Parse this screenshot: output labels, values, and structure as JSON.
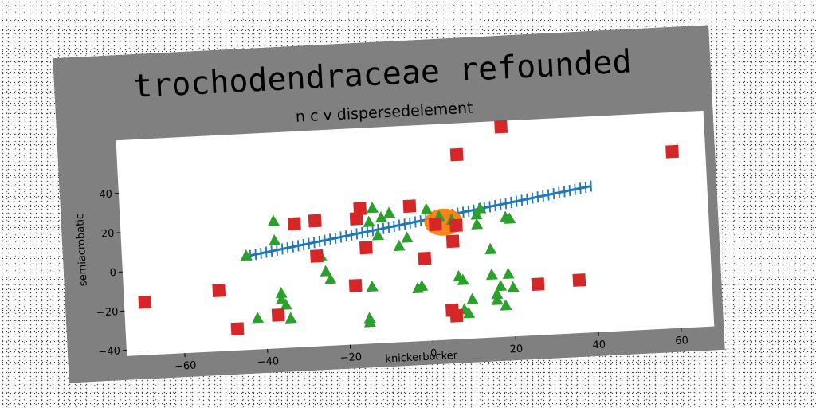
{
  "chart_data": {
    "type": "scatter",
    "title": "trochodendraceae refounded",
    "subtitle": "n c v dispersedelement",
    "xlabel": "knickerbocker",
    "ylabel": "semiacrobatic",
    "xlim": [
      -74,
      68
    ],
    "ylim": [
      -43,
      67
    ],
    "xticks": [
      -60,
      -40,
      -20,
      0,
      20,
      40,
      60
    ],
    "yticks": [
      -40,
      -20,
      0,
      20,
      40
    ],
    "grid": false,
    "legend": "none",
    "colors": {
      "frame_bg": "#808080",
      "plot_bg": "#ffffff",
      "line": "#1f77b4",
      "blob": "#ff7f0e",
      "triangle": "#2ca02c",
      "square": "#d62728"
    },
    "series": [
      {
        "marker": "x-line",
        "x": [
          -43,
          -38,
          -33,
          -28,
          -23,
          -18,
          -13,
          -8,
          -3,
          2,
          7,
          12,
          17,
          22,
          27,
          32,
          37,
          40
        ],
        "y": [
          5,
          6.6,
          8.2,
          9.8,
          11.4,
          13,
          14.6,
          16.2,
          17.8,
          19.4,
          21,
          22.6,
          24.2,
          25.8,
          27.4,
          29,
          30.6,
          31.5
        ]
      },
      {
        "marker": "blob",
        "x": [
          4
        ],
        "y": [
          17
        ]
      },
      {
        "marker": "triangle",
        "x": [
          -44,
          -37,
          -37,
          -36,
          -36,
          -35,
          -34,
          -42,
          -26,
          -25,
          -24,
          -15,
          -15,
          -14,
          -13,
          -14,
          -12,
          -11,
          -9,
          -7,
          -5,
          -3,
          -2,
          0,
          3,
          6,
          7,
          8,
          10,
          12,
          12,
          13,
          15,
          15,
          16,
          16,
          17,
          18,
          19,
          20,
          19,
          20,
          8,
          9
        ],
        "y": [
          5,
          22,
          12,
          -15,
          -18,
          -21,
          -28,
          -27,
          3,
          -5,
          -9,
          -30,
          -32,
          -14,
          26,
          19,
          12,
          21,
          23,
          6,
          10,
          -16,
          -15,
          24,
          20,
          18,
          -11,
          -13,
          -23,
          15,
          20,
          23,
          2,
          -11,
          -21,
          -24,
          -17,
          -27,
          18,
          17,
          -11,
          -18,
          -28,
          -30
        ]
      },
      {
        "marker": "square",
        "x": [
          -69,
          -51,
          -47,
          -37,
          -32,
          -27,
          -27,
          -18,
          -17,
          -16,
          -15,
          -4,
          -1,
          2,
          5,
          6,
          6,
          7,
          8,
          19,
          26,
          36,
          60
        ],
        "y": [
          -16,
          -12,
          -32,
          -26,
          20,
          21,
          3,
          -13,
          21,
          26,
          6,
          26,
          -1,
          16,
          -28,
          -31,
          7,
          15,
          51,
          64,
          -17,
          -16,
          47
        ]
      }
    ]
  }
}
